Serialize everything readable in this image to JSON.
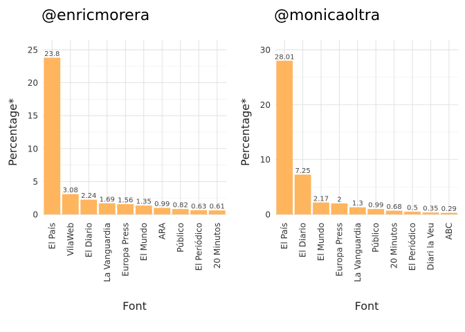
{
  "chart_data": [
    {
      "type": "bar",
      "title": "@enricmorera",
      "xlabel": "Font",
      "ylabel": "Percentage*",
      "ylim": [
        0,
        25
      ],
      "yticks": [
        0,
        5,
        10,
        15,
        20,
        25
      ],
      "categories": [
        "El País",
        "VilaWeb",
        "El Diario",
        "La Vanguardia",
        "Europa Press",
        "El Mundo",
        "ARA",
        "Público",
        "El Periódico",
        "20 Minutos"
      ],
      "values": [
        23.8,
        3.08,
        2.24,
        1.69,
        1.56,
        1.35,
        0.99,
        0.82,
        0.63,
        0.61
      ],
      "value_labels": [
        "23.8",
        "3.08",
        "2.24",
        "1.69",
        "1.56",
        "1.35",
        "0.99",
        "0.82",
        "0.63",
        "0.61"
      ],
      "bar_color": "#ffb55e",
      "grid": true
    },
    {
      "type": "bar",
      "title": "@monicaoltra",
      "xlabel": "Font",
      "ylabel": "Percentage*",
      "ylim": [
        0,
        30
      ],
      "yticks": [
        0,
        10,
        20,
        30
      ],
      "categories": [
        "El País",
        "El Diario",
        "El Mundo",
        "Europa Press",
        "La Vanguardia",
        "Público",
        "20 Minutos",
        "El Periódico",
        "Diari la Veu",
        "ABC"
      ],
      "values": [
        28.01,
        7.25,
        2.17,
        2,
        1.3,
        0.99,
        0.68,
        0.5,
        0.35,
        0.29
      ],
      "value_labels": [
        "28.01",
        "7.25",
        "2.17",
        "2",
        "1.3",
        "0.99",
        "0.68",
        "0.5",
        "0.35",
        "0.29"
      ],
      "bar_color": "#ffb55e",
      "grid": true
    }
  ]
}
